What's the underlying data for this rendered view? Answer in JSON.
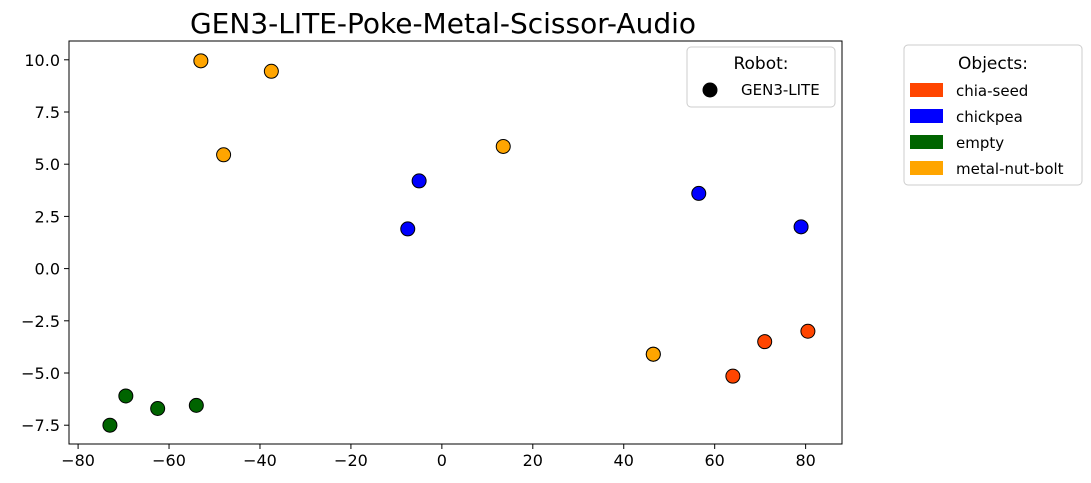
{
  "chart_data": {
    "type": "scatter",
    "title": "GEN3-LITE-Poke-Metal-Scissor-Audio",
    "xlabel": "",
    "ylabel": "",
    "xlim": [
      -82,
      88
    ],
    "ylim": [
      -8.4,
      10.9
    ],
    "x_ticks": [
      -80,
      -60,
      -40,
      -20,
      0,
      20,
      40,
      60,
      80
    ],
    "y_ticks": [
      -7.5,
      -5.0,
      -2.5,
      0.0,
      2.5,
      5.0,
      7.5,
      10.0
    ],
    "x_tick_labels": [
      "−80",
      "−60",
      "−40",
      "−20",
      "0",
      "20",
      "40",
      "60",
      "80"
    ],
    "y_tick_labels": [
      "−7.5",
      "−5.0",
      "−2.5",
      "0.0",
      "2.5",
      "5.0",
      "7.5",
      "10.0"
    ],
    "grid": false,
    "series": [
      {
        "name": "chia-seed",
        "color": "#FF4500",
        "points": [
          [
            80.5,
            -3.0
          ],
          [
            71.0,
            -3.5
          ],
          [
            64.0,
            -5.15
          ],
          [
            46.5,
            -4.1
          ]
        ]
      },
      {
        "name": "chickpea",
        "color": "#0000FF",
        "points": [
          [
            79.0,
            2.0
          ],
          [
            56.5,
            3.6
          ],
          [
            -5.0,
            4.2
          ],
          [
            -7.5,
            1.9
          ]
        ]
      },
      {
        "name": "empty",
        "color": "#006400",
        "points": [
          [
            -54.0,
            -6.55
          ],
          [
            -62.5,
            -6.7
          ],
          [
            -69.5,
            -6.1
          ],
          [
            -73.0,
            -7.5
          ]
        ]
      },
      {
        "name": "metal-nut-bolt",
        "color": "#FFA500",
        "points": [
          [
            -53.0,
            9.95
          ],
          [
            -37.5,
            9.45
          ],
          [
            -48.0,
            5.45
          ],
          [
            13.5,
            5.85
          ],
          [
            46.5,
            -4.1
          ]
        ]
      }
    ],
    "robot_legend": {
      "title": "Robot:",
      "items": [
        {
          "label": "GEN3-LITE",
          "marker": "circle",
          "color": "#000000"
        }
      ]
    },
    "objects_legend": {
      "title": "Objects:",
      "items": [
        {
          "label": "chia-seed",
          "color": "#FF4500"
        },
        {
          "label": "chickpea",
          "color": "#0000FF"
        },
        {
          "label": "empty",
          "color": "#006400"
        },
        {
          "label": "metal-nut-bolt",
          "color": "#FFA500"
        }
      ]
    },
    "robot_legend_position": "top-right",
    "objects_legend_position": "outside-right"
  }
}
